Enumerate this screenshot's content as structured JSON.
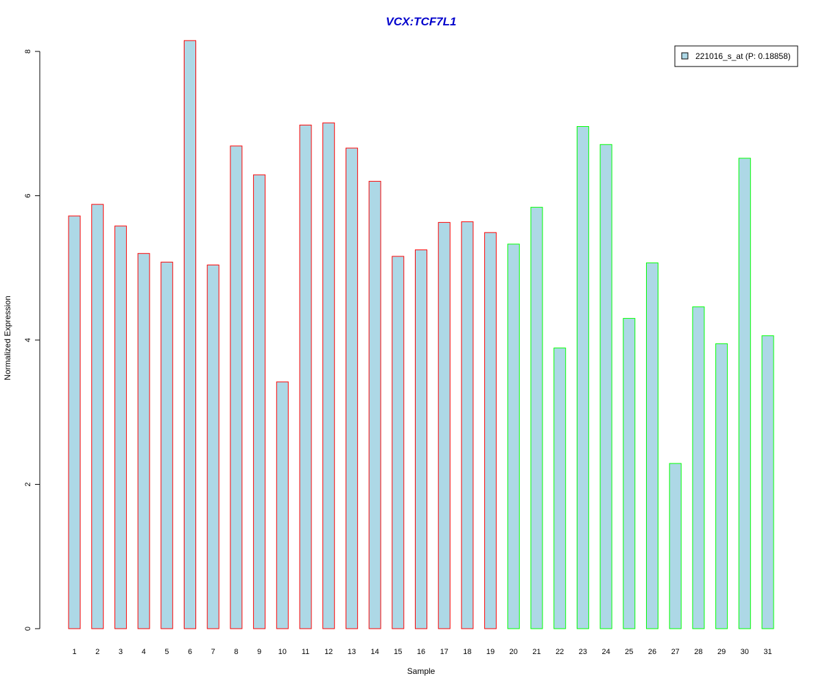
{
  "chart_data": {
    "type": "bar",
    "title": "VCX:TCF7L1",
    "xlabel": "Sample",
    "ylabel": "Normalized Expression",
    "ylim": [
      0,
      8
    ],
    "yticks": [
      0,
      2,
      4,
      6,
      8
    ],
    "categories": [
      "1",
      "2",
      "3",
      "4",
      "5",
      "6",
      "7",
      "8",
      "9",
      "10",
      "11",
      "12",
      "13",
      "14",
      "15",
      "16",
      "17",
      "18",
      "19",
      "20",
      "21",
      "22",
      "23",
      "24",
      "25",
      "26",
      "27",
      "28",
      "29",
      "30",
      "31"
    ],
    "series": [
      {
        "name": "221016_s_at (P: 0.18858)",
        "values": [
          5.72,
          5.88,
          5.58,
          5.2,
          5.08,
          8.15,
          5.04,
          6.69,
          6.29,
          3.42,
          6.98,
          7.01,
          6.66,
          6.2,
          5.16,
          5.25,
          5.63,
          5.64,
          5.49,
          5.33,
          5.84,
          3.89,
          6.96,
          6.71,
          4.3,
          5.07,
          2.29,
          4.46,
          3.95,
          6.52,
          4.06
        ]
      }
    ],
    "groups": [
      "red",
      "red",
      "red",
      "red",
      "red",
      "red",
      "red",
      "red",
      "red",
      "red",
      "red",
      "red",
      "red",
      "red",
      "red",
      "red",
      "red",
      "red",
      "red",
      "green",
      "green",
      "green",
      "green",
      "green",
      "green",
      "green",
      "green",
      "green",
      "green",
      "green",
      "green"
    ],
    "colors": {
      "bar_fill": "#add8e6",
      "red": "#ff0000",
      "green": "#00ff00",
      "title": "#0000cc",
      "axis": "#000000"
    },
    "legend_position": "top-right",
    "grid": false
  }
}
